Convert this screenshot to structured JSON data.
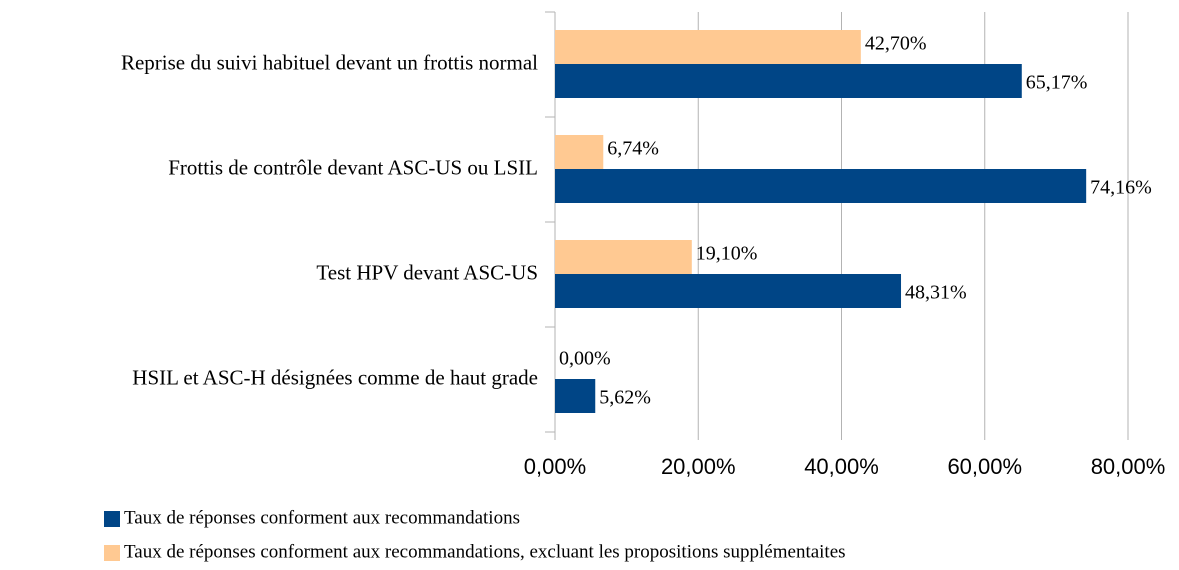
{
  "chart_data": {
    "type": "hbar",
    "categories": [
      "Reprise du suivi habituel devant un frottis normal",
      "Frottis de contrôle devant ASC-US ou LSIL",
      "Test HPV devant ASC-US",
      "HSIL et ASC-H désignées comme de haut grade"
    ],
    "series": [
      {
        "name": "Taux de réponses conforment aux recommandations",
        "color": "#004586",
        "values": [
          65.17,
          74.16,
          48.31,
          5.62
        ],
        "value_labels": [
          "65,17%",
          "74,16%",
          "48,31%",
          "5,62%"
        ]
      },
      {
        "name": "Taux de réponses conforment aux recommandations, excluant les propositions supplémentaites",
        "color": "#ffc992",
        "values": [
          42.7,
          6.74,
          19.1,
          0.0
        ],
        "value_labels": [
          "42,70%",
          "6,74%",
          "19,10%",
          "0,00%"
        ]
      }
    ],
    "xlim": [
      0,
      80
    ],
    "xticks": [
      {
        "value": 0,
        "label": "0,00%"
      },
      {
        "value": 20,
        "label": "20,00%"
      },
      {
        "value": 40,
        "label": "40,00%"
      },
      {
        "value": 60,
        "label": "60,00%"
      },
      {
        "value": 80,
        "label": "80,00%"
      }
    ],
    "grid": true,
    "legend": "bottom"
  }
}
